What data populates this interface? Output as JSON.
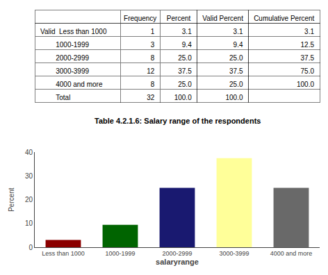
{
  "chart_data": [
    {
      "type": "table",
      "title": "Table 4.2.1.6: Salary range of the respondents",
      "columns": [
        null,
        "Frequency",
        "Percent",
        "Valid Percent",
        "Cumulative Percent"
      ],
      "rows": [
        [
          "Valid  Less than 1000",
          "1",
          "3.1",
          "3.1",
          "3.1"
        ],
        [
          "        1000-1999",
          "3",
          "9.4",
          "9.4",
          "12.5"
        ],
        [
          "        2000-2999",
          "8",
          "25.0",
          "25.0",
          "37.5"
        ],
        [
          "        3000-3999",
          "12",
          "37.5",
          "37.5",
          "75.0"
        ],
        [
          "        4000 and more",
          "8",
          "25.0",
          "25.0",
          "100.0"
        ],
        [
          "        Total",
          "32",
          "100.0",
          "100.0",
          null
        ]
      ]
    },
    {
      "type": "bar",
      "categories": [
        "Less than 1000",
        "1000-1999",
        "2000-2999",
        "3000-3999",
        "4000 and more"
      ],
      "values": [
        3.1,
        9.4,
        25.0,
        37.5,
        25.0
      ],
      "colors": [
        "#8B0000",
        "#006400",
        "#191970",
        "#FFFF99",
        "#696969"
      ],
      "xlabel": "salaryrange",
      "ylabel": "Percent",
      "ylim": [
        0,
        40
      ],
      "yticks": [
        0,
        10,
        20,
        30,
        40
      ],
      "grid": false
    }
  ]
}
